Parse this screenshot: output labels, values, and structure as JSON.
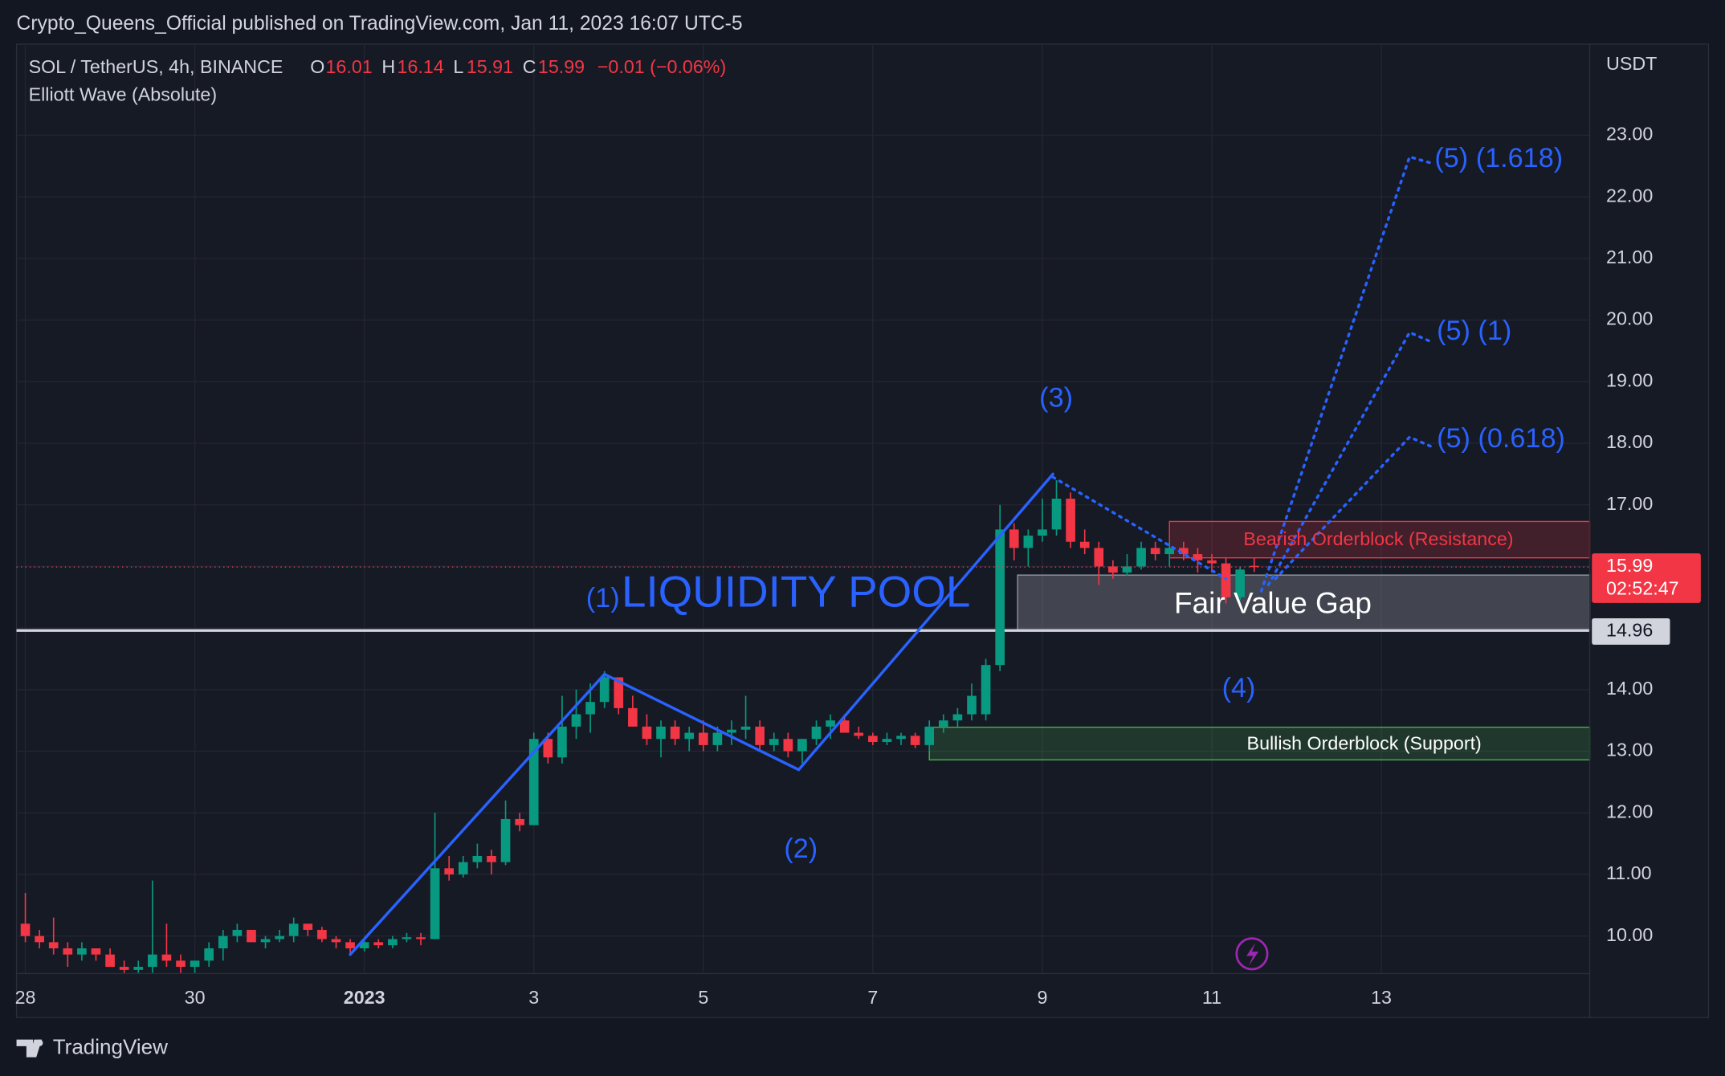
{
  "chart_data": {
    "type": "candlestick",
    "publisher": "Crypto_Queens_Official published on TradingView.com, Jan 11, 2023 16:07 UTC-5",
    "symbol": "SOL / TetherUS, 4h, BINANCE",
    "ohlc_letters": [
      "O",
      "H",
      "L",
      "C"
    ],
    "change_label": "−0.01 (−0.06%)",
    "indicator": "Elliott Wave (Absolute)",
    "currency": "USDT",
    "countdown": "02:52:47",
    "brand": "TradingView",
    "colors": {
      "up": "#089981",
      "down": "#f23645",
      "wave": "#2962ff"
    },
    "grid": true,
    "xlim": [
      -2.5,
      443
    ],
    "ylim": [
      9.39,
      24.48
    ],
    "xticks": [
      {
        "value": 0,
        "label": "28"
      },
      {
        "value": 48,
        "label": "30"
      },
      {
        "value": 96,
        "label": "2023"
      },
      {
        "value": 144,
        "label": "3"
      },
      {
        "value": 192,
        "label": "5"
      },
      {
        "value": 240,
        "label": "7"
      },
      {
        "value": 288,
        "label": "9"
      },
      {
        "value": 336,
        "label": "11"
      },
      {
        "value": 384,
        "label": "13"
      }
    ],
    "yticks": [
      {
        "value": 10,
        "label": "10.00"
      },
      {
        "value": 11,
        "label": "11.00"
      },
      {
        "value": 12,
        "label": "12.00"
      },
      {
        "value": 13,
        "label": "13.00"
      },
      {
        "value": 14,
        "label": "14.00"
      },
      {
        "value": 15,
        "label": "15.00"
      },
      {
        "value": 16,
        "label": "16.00"
      },
      {
        "value": 17,
        "label": "17.00"
      },
      {
        "value": 18,
        "label": "18.00"
      },
      {
        "value": 19,
        "label": "19.00"
      },
      {
        "value": 20,
        "label": "20.00"
      },
      {
        "value": 21,
        "label": "21.00"
      },
      {
        "value": 22,
        "label": "22.00"
      },
      {
        "value": 23,
        "label": "23.00"
      }
    ],
    "candles": {
      "x": [
        0,
        4,
        8,
        12,
        16,
        20,
        24,
        28,
        32,
        36,
        40,
        44,
        48,
        52,
        56,
        60,
        64,
        68,
        72,
        76,
        80,
        84,
        88,
        92,
        96,
        100,
        104,
        108,
        112,
        116,
        120,
        124,
        128,
        132,
        136,
        140,
        144,
        148,
        152,
        156,
        160,
        164,
        168,
        172,
        176,
        180,
        184,
        188,
        192,
        196,
        200,
        204,
        208,
        212,
        216,
        220,
        224,
        228,
        232,
        236,
        240,
        244,
        248,
        252,
        256,
        260,
        264,
        268,
        272,
        276,
        280,
        284,
        288,
        292,
        296,
        300,
        304,
        308,
        312,
        316,
        320,
        324,
        328,
        332,
        336,
        340,
        344,
        348
      ],
      "open": [
        10.2,
        10.0,
        9.9,
        9.8,
        9.7,
        9.8,
        9.7,
        9.5,
        9.45,
        9.5,
        9.7,
        9.6,
        9.5,
        9.6,
        9.8,
        10.0,
        10.1,
        9.9,
        9.95,
        10.0,
        10.2,
        10.1,
        9.95,
        9.9,
        9.8,
        9.9,
        9.85,
        9.95,
        9.98,
        9.95,
        11.1,
        11.0,
        11.2,
        11.3,
        11.2,
        11.9,
        11.8,
        13.2,
        12.9,
        13.4,
        13.6,
        13.8,
        14.2,
        13.7,
        13.4,
        13.2,
        13.4,
        13.2,
        13.3,
        13.1,
        13.3,
        13.35,
        13.4,
        13.1,
        13.2,
        13.0,
        13.2,
        13.4,
        13.5,
        13.3,
        13.25,
        13.15,
        13.2,
        13.25,
        13.1,
        13.4,
        13.5,
        13.6,
        13.6,
        14.4,
        16.6,
        16.3,
        16.5,
        16.6,
        17.1,
        16.4,
        16.3,
        16.0,
        15.9,
        16.0,
        16.3,
        16.2,
        16.3,
        16.2,
        16.1,
        16.05,
        15.5,
        16.01
      ],
      "high": [
        10.7,
        10.1,
        10.3,
        9.9,
        9.9,
        9.8,
        9.8,
        9.6,
        9.6,
        10.9,
        10.2,
        9.7,
        9.6,
        9.9,
        10.1,
        10.2,
        10.1,
        10.0,
        10.1,
        10.3,
        10.2,
        10.15,
        10.0,
        9.95,
        9.95,
        9.95,
        10.0,
        10.05,
        10.05,
        12.0,
        11.3,
        11.3,
        11.5,
        11.4,
        12.2,
        12.0,
        13.3,
        13.3,
        13.9,
        14.0,
        14.1,
        14.3,
        14.2,
        13.9,
        13.6,
        13.5,
        13.5,
        13.4,
        13.5,
        13.4,
        13.5,
        13.9,
        13.5,
        13.3,
        13.3,
        13.2,
        13.5,
        13.6,
        13.6,
        13.4,
        13.3,
        13.3,
        13.3,
        13.3,
        13.5,
        13.6,
        13.7,
        14.1,
        14.5,
        17.0,
        16.7,
        16.6,
        17.1,
        17.4,
        17.2,
        16.6,
        16.4,
        16.1,
        16.2,
        16.4,
        16.4,
        16.4,
        16.4,
        16.3,
        16.2,
        16.15,
        16.0,
        16.14
      ],
      "low": [
        9.9,
        9.8,
        9.7,
        9.5,
        9.6,
        9.6,
        9.5,
        9.4,
        9.4,
        9.4,
        9.5,
        9.4,
        9.4,
        9.5,
        9.6,
        9.9,
        9.9,
        9.8,
        9.9,
        9.9,
        10.0,
        9.9,
        9.8,
        9.7,
        9.75,
        9.8,
        9.8,
        9.9,
        9.85,
        9.95,
        10.9,
        10.95,
        11.1,
        11.0,
        11.15,
        11.7,
        11.8,
        12.8,
        12.8,
        13.2,
        13.3,
        13.7,
        13.6,
        13.4,
        13.1,
        12.9,
        13.1,
        13.0,
        13.0,
        13.0,
        13.1,
        13.2,
        13.0,
        13.0,
        12.9,
        12.8,
        13.1,
        13.2,
        13.3,
        13.2,
        13.1,
        13.1,
        13.1,
        13.05,
        13.0,
        13.3,
        13.4,
        13.5,
        13.5,
        14.3,
        16.1,
        16.0,
        16.4,
        16.5,
        16.3,
        16.2,
        15.7,
        15.8,
        15.85,
        15.95,
        16.1,
        16.0,
        16.1,
        15.9,
        15.9,
        15.4,
        15.45,
        15.91
      ],
      "close": [
        10.0,
        9.9,
        9.8,
        9.7,
        9.8,
        9.7,
        9.5,
        9.45,
        9.5,
        9.7,
        9.6,
        9.5,
        9.6,
        9.8,
        10.0,
        10.1,
        9.9,
        9.95,
        10.0,
        10.2,
        10.1,
        9.95,
        9.9,
        9.8,
        9.9,
        9.85,
        9.95,
        9.98,
        9.95,
        11.1,
        11.0,
        11.2,
        11.3,
        11.2,
        11.9,
        11.8,
        13.2,
        12.9,
        13.4,
        13.6,
        13.8,
        14.2,
        13.7,
        13.4,
        13.2,
        13.4,
        13.2,
        13.3,
        13.1,
        13.3,
        13.35,
        13.4,
        13.1,
        13.2,
        13.0,
        13.2,
        13.4,
        13.5,
        13.3,
        13.25,
        13.15,
        13.2,
        13.25,
        13.1,
        13.4,
        13.5,
        13.6,
        13.9,
        14.4,
        16.6,
        16.3,
        16.5,
        16.6,
        17.1,
        16.4,
        16.3,
        16.0,
        15.9,
        16.0,
        16.3,
        16.2,
        16.3,
        16.2,
        16.1,
        16.05,
        15.5,
        15.95,
        15.99
      ]
    },
    "wave": {
      "x": [
        92,
        164,
        219,
        291
      ],
      "y": [
        9.7,
        14.25,
        12.7,
        17.5
      ],
      "labels": [
        "(1)",
        "(2)",
        "(3)",
        "(4)"
      ]
    },
    "wave_extension": {
      "x": [
        291,
        340
      ],
      "y": [
        17.45,
        15.8
      ]
    },
    "projections": [
      {
        "label": "(5) (1.618)",
        "x": [
          350,
          392,
          398
        ],
        "y": [
          15.6,
          22.65,
          22.55
        ]
      },
      {
        "label": "(5) (1)",
        "x": [
          352,
          392,
          398
        ],
        "y": [
          15.7,
          19.8,
          19.65
        ]
      },
      {
        "label": "(5) (0.618)",
        "x": [
          354,
          392,
          398
        ],
        "y": [
          15.8,
          18.1,
          17.95
        ]
      }
    ],
    "zones": [
      {
        "label": "Bearish Orderblock (Resistance)",
        "start": 324,
        "low": 16.14,
        "high": 16.73,
        "color": "#f23645"
      },
      {
        "label": "Fair Value Gap",
        "start": 281,
        "low": 14.96,
        "high": 15.86,
        "color": "#9598a1"
      },
      {
        "label": "Bullish Orderblock (Support)",
        "start": 256,
        "low": 12.86,
        "high": 13.39,
        "color": "#4caf50"
      }
    ],
    "liquidity": {
      "label": "LIQUIDITY POOL",
      "value": 14.96
    }
  }
}
